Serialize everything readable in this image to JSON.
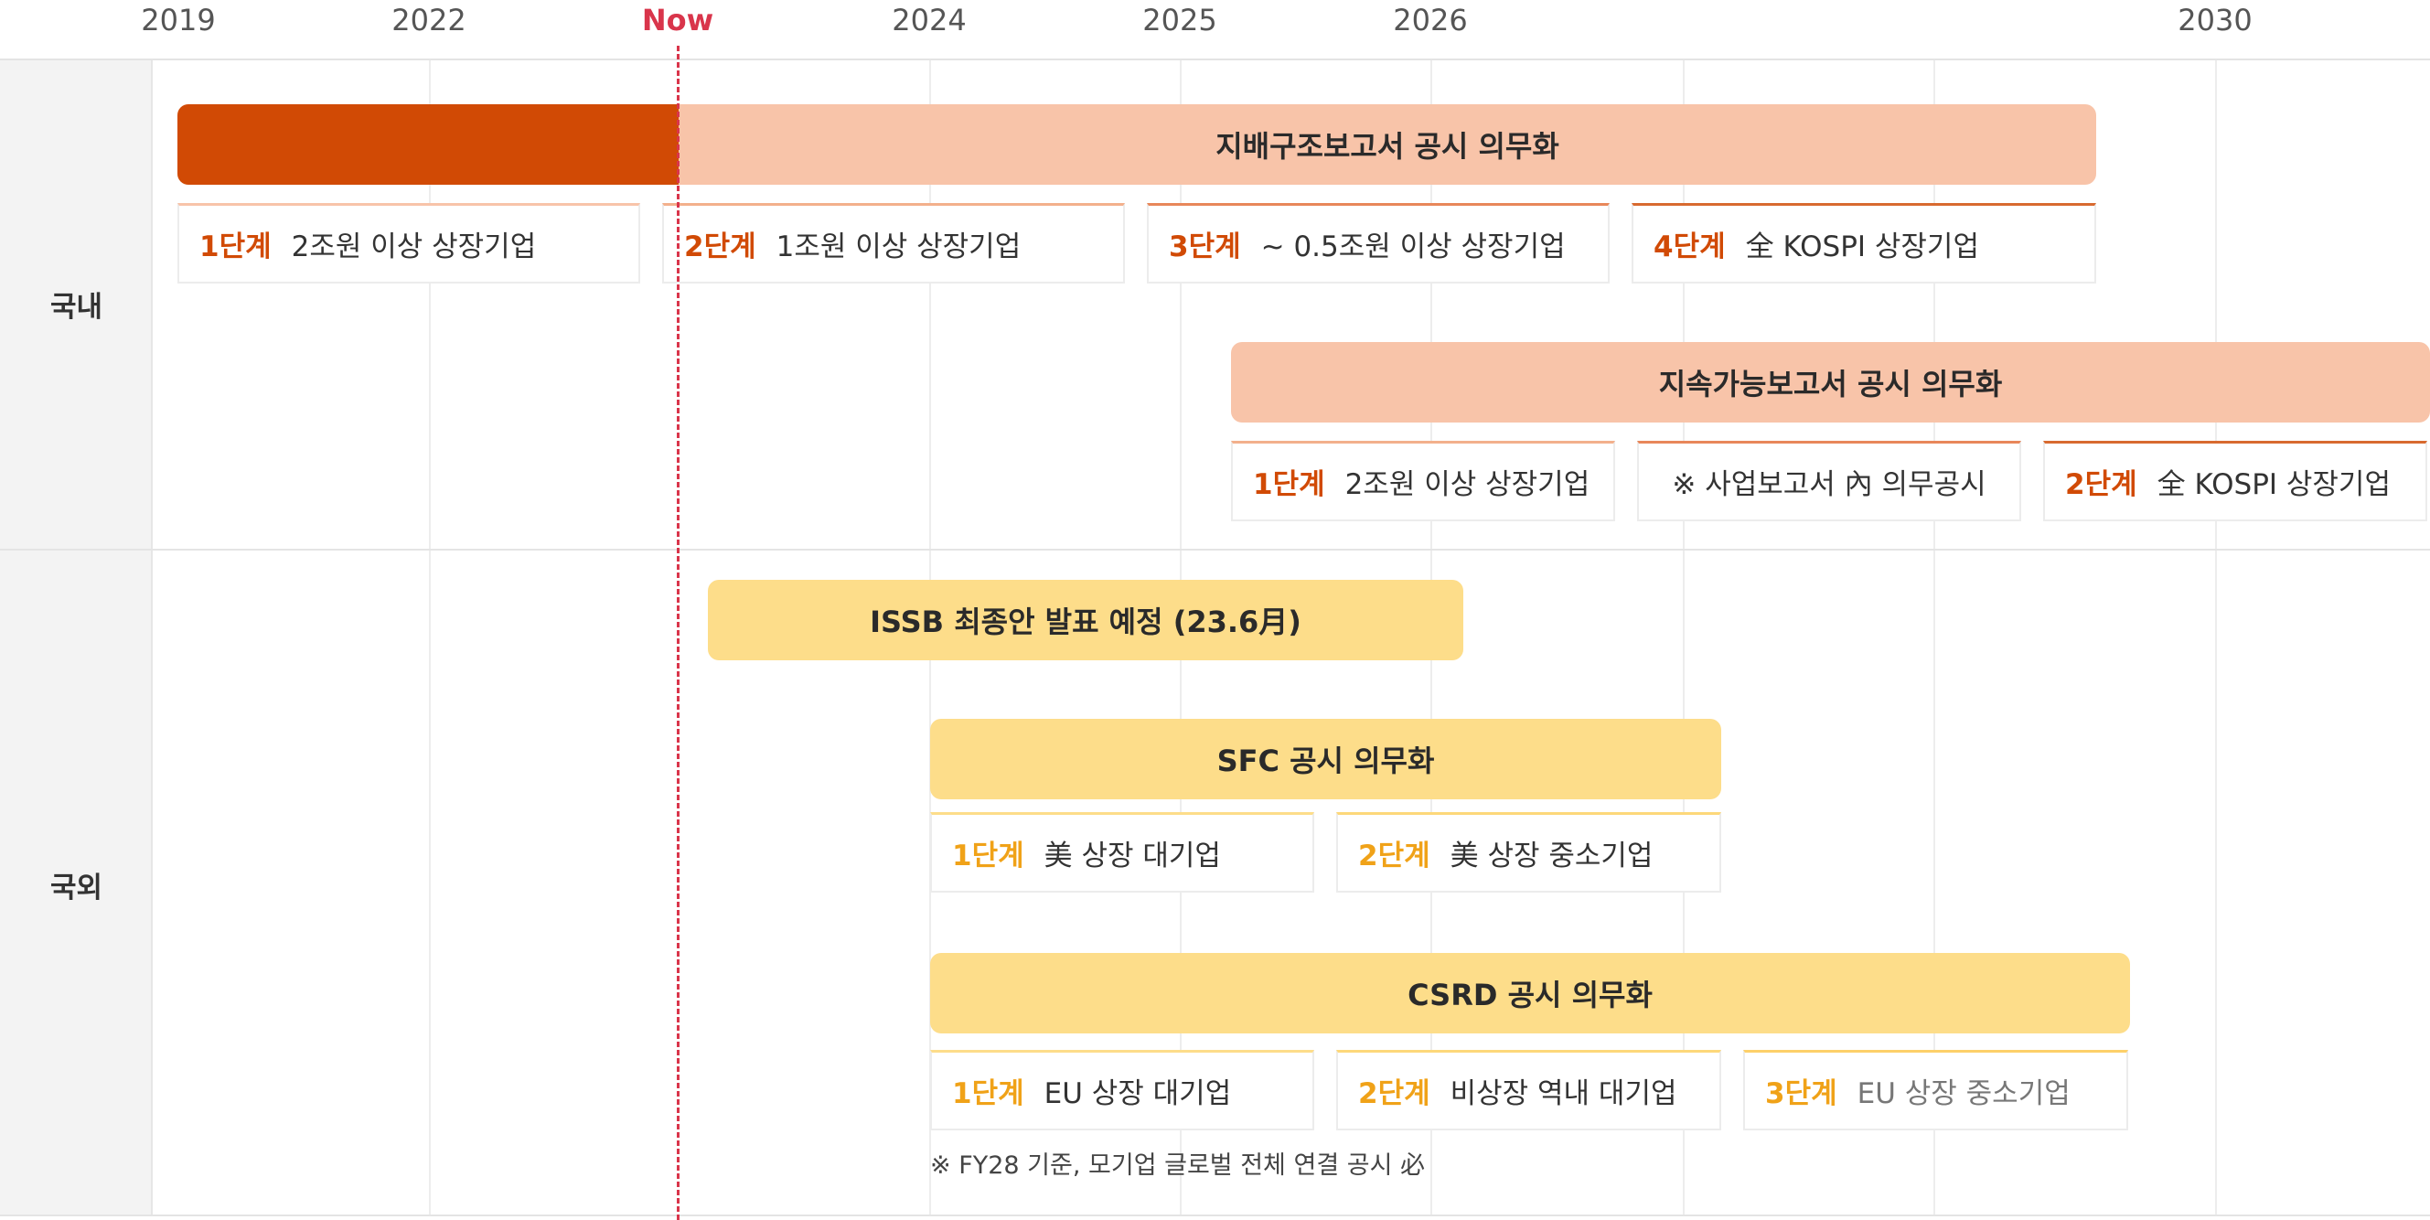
{
  "timeline": {
    "years": [
      "2019",
      "2022",
      "Now",
      "2024",
      "2025",
      "2026",
      "2030"
    ]
  },
  "rows": {
    "domestic": "국내",
    "overseas": "국외"
  },
  "bars": {
    "governance": "지배구조보고서 공시 의무화",
    "sustainability": "지속가능보고서 공시 의무화",
    "issb": "ISSB 최종안 발표 예정 (23.6月)",
    "sfc": "SFC 공시 의무화",
    "csrd": "CSRD 공시 의무화"
  },
  "governance_stages": [
    {
      "level": "1단계",
      "text": "2조원 이상 상장기업"
    },
    {
      "level": "2단계",
      "text": "1조원 이상 상장기업"
    },
    {
      "level": "3단계",
      "text": "~ 0.5조원 이상 상장기업"
    },
    {
      "level": "4단계",
      "text": "全 KOSPI 상장기업"
    }
  ],
  "sustainability_stages": [
    {
      "level": "1단계",
      "text": "2조원 이상 상장기업"
    },
    {
      "level": "",
      "text": "※ 사업보고서 內 의무공시"
    },
    {
      "level": "2단계",
      "text": "全 KOSPI 상장기업"
    }
  ],
  "sfc_stages": [
    {
      "level": "1단계",
      "text": "美 상장 대기업"
    },
    {
      "level": "2단계",
      "text": "美 상장 중소기업"
    }
  ],
  "csrd_stages": [
    {
      "level": "1단계",
      "text": "EU 상장 대기업"
    },
    {
      "level": "2단계",
      "text": "비상장 역내 대기업"
    },
    {
      "level": "3단계",
      "text": "EU 상장 중소기업"
    }
  ],
  "csrd_note": "※ FY28 기준, 모기업 글로벌 전체 연결 공시 必",
  "colors": {
    "dark_orange": "#d14a05",
    "light_orange": "#f8c4a9",
    "yellow": "#fddd8a",
    "yellow_text": "#f0a218",
    "now_red": "#d9354b"
  }
}
